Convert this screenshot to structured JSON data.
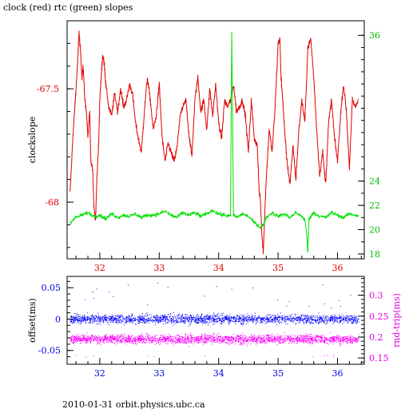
{
  "title": "clock (red) rtc (green) slopes",
  "footer": "2010-01-31 orbit.physics.ubc.ca",
  "colors": {
    "red": "#e00000",
    "green": "#00e000",
    "blue": "#0000ff",
    "magenta": "#ff00ff",
    "axis_red": "#e00000",
    "axis_green": "#00c000",
    "axis_blue": "#0000e0",
    "axis_magenta": "#e000e0"
  },
  "chart_data": [
    {
      "type": "line",
      "title": "clock (red) rtc (green) slopes",
      "ylabel": "clockslope",
      "xlabel": "",
      "xlim": [
        31.45,
        36.45
      ],
      "ylim": [
        -68.25,
        -67.2
      ],
      "y2lim": [
        17.6,
        37.2
      ],
      "x_ticks": [
        "32",
        "33",
        "34",
        "35",
        "36"
      ],
      "y_ticks": [
        "-67.5",
        "-68"
      ],
      "y2_ticks": [
        "18",
        "20",
        "22",
        "24",
        "36"
      ],
      "grid": false,
      "series": [
        {
          "name": "clock",
          "axis": "left",
          "x": [
            31.5,
            31.55,
            31.58,
            31.6,
            31.63,
            31.65,
            31.68,
            31.7,
            31.72,
            31.75,
            31.78,
            31.8,
            31.83,
            31.85,
            31.88,
            31.9,
            31.93,
            31.95,
            31.98,
            32.0,
            32.03,
            32.05,
            32.08,
            32.1,
            32.15,
            32.2,
            32.25,
            32.3,
            32.35,
            32.4,
            32.45,
            32.5,
            32.55,
            32.6,
            32.65,
            32.7,
            32.75,
            32.8,
            32.85,
            32.9,
            32.95,
            33.0,
            33.05,
            33.1,
            33.15,
            33.2,
            33.25,
            33.3,
            33.35,
            33.4,
            33.45,
            33.5,
            33.55,
            33.6,
            33.65,
            33.7,
            33.75,
            33.8,
            33.85,
            33.9,
            33.95,
            34.0,
            34.05,
            34.1,
            34.15,
            34.2,
            34.25,
            34.3,
            34.35,
            34.4,
            34.45,
            34.5,
            34.55,
            34.6,
            34.65,
            34.68,
            34.7,
            34.73,
            34.75,
            34.8,
            34.85,
            34.9,
            34.95,
            35.0,
            35.03,
            35.05,
            35.08,
            35.1,
            35.15,
            35.2,
            35.25,
            35.3,
            35.35,
            35.4,
            35.45,
            35.5,
            35.55,
            35.6,
            35.65,
            35.7,
            35.75,
            35.8,
            35.85,
            35.9,
            35.95,
            36.0,
            36.05,
            36.1,
            36.15,
            36.2,
            36.25,
            36.3,
            36.35
          ],
          "y": [
            -67.96,
            -67.7,
            -67.58,
            -67.5,
            -67.37,
            -67.25,
            -67.35,
            -67.45,
            -67.4,
            -67.55,
            -67.62,
            -67.72,
            -67.6,
            -67.82,
            -67.85,
            -68.02,
            -68.08,
            -67.9,
            -67.75,
            -67.55,
            -67.42,
            -67.35,
            -67.4,
            -67.48,
            -67.58,
            -67.62,
            -67.52,
            -67.6,
            -67.5,
            -67.58,
            -67.55,
            -67.48,
            -67.52,
            -67.65,
            -67.72,
            -67.78,
            -67.6,
            -67.45,
            -67.55,
            -67.68,
            -67.62,
            -67.48,
            -67.72,
            -67.82,
            -67.74,
            -67.78,
            -67.82,
            -67.76,
            -67.62,
            -67.58,
            -67.55,
            -67.7,
            -67.8,
            -67.55,
            -67.45,
            -67.6,
            -67.55,
            -67.68,
            -67.5,
            -67.62,
            -67.48,
            -67.65,
            -67.72,
            -67.55,
            -67.58,
            -67.55,
            -67.48,
            -67.6,
            -67.58,
            -67.55,
            -67.62,
            -67.78,
            -67.55,
            -67.72,
            -67.75,
            -67.95,
            -67.98,
            -68.15,
            -68.22,
            -67.9,
            -67.68,
            -67.78,
            -67.58,
            -67.3,
            -67.28,
            -67.45,
            -67.55,
            -67.65,
            -67.82,
            -67.92,
            -67.75,
            -67.9,
            -67.68,
            -67.55,
            -67.65,
            -67.32,
            -67.28,
            -67.45,
            -67.68,
            -67.88,
            -67.78,
            -67.92,
            -67.65,
            -67.55,
            -67.72,
            -67.82,
            -67.62,
            -67.48,
            -67.6,
            -67.85,
            -67.55,
            -67.58,
            -67.55
          ]
        },
        {
          "name": "rtc",
          "axis": "right",
          "x": [
            31.5,
            31.6,
            31.7,
            31.8,
            31.9,
            32.0,
            32.1,
            32.2,
            32.3,
            32.4,
            32.5,
            32.6,
            32.7,
            32.8,
            32.9,
            33.0,
            33.1,
            33.2,
            33.3,
            33.4,
            33.5,
            33.6,
            33.7,
            33.8,
            33.9,
            34.0,
            34.1,
            34.2,
            34.22,
            34.25,
            34.3,
            34.4,
            34.5,
            34.6,
            34.7,
            34.75,
            34.8,
            34.9,
            35.0,
            35.1,
            35.2,
            35.3,
            35.4,
            35.45,
            35.48,
            35.5,
            35.52,
            35.6,
            35.7,
            35.8,
            35.9,
            36.0,
            36.1,
            36.2,
            36.3,
            36.35
          ],
          "y": [
            20.6,
            21.0,
            21.2,
            21.4,
            21.1,
            21.2,
            20.9,
            21.3,
            21.0,
            21.2,
            21.1,
            21.3,
            21.0,
            21.2,
            21.2,
            21.3,
            21.5,
            21.2,
            21.0,
            21.4,
            21.2,
            21.4,
            21.1,
            21.3,
            21.6,
            21.3,
            21.2,
            21.1,
            36.3,
            21.2,
            21.0,
            21.3,
            21.1,
            20.6,
            20.2,
            20.4,
            21.0,
            21.4,
            21.1,
            21.3,
            21.0,
            21.4,
            21.1,
            20.8,
            19.7,
            18.1,
            20.9,
            21.4,
            21.1,
            21.0,
            21.4,
            21.2,
            21.0,
            21.3,
            21.2,
            21.1
          ]
        }
      ]
    },
    {
      "type": "scatter",
      "ylabel": "offset(ms)",
      "y2label": "rnd-trip(ms)",
      "xlim": [
        31.45,
        36.45
      ],
      "ylim": [
        -0.072,
        0.068
      ],
      "y2lim": [
        0.135,
        0.345
      ],
      "x_ticks": [
        "32",
        "33",
        "34",
        "35",
        "36"
      ],
      "y_ticks": [
        "0.05",
        "0",
        "-0.05"
      ],
      "y2_ticks": [
        "0.3",
        "0.25",
        "0.2",
        "0.15"
      ],
      "grid": false,
      "series": [
        {
          "name": "offset",
          "axis": "left",
          "x_range": [
            31.5,
            36.35
          ],
          "center": 0.0,
          "spread": 0.012,
          "outlier_max": 0.058
        },
        {
          "name": "rnd-trip",
          "axis": "right",
          "x_range": [
            31.5,
            36.35
          ],
          "center": 0.195,
          "spread": 0.018,
          "outlier_min": 0.16
        }
      ]
    }
  ]
}
